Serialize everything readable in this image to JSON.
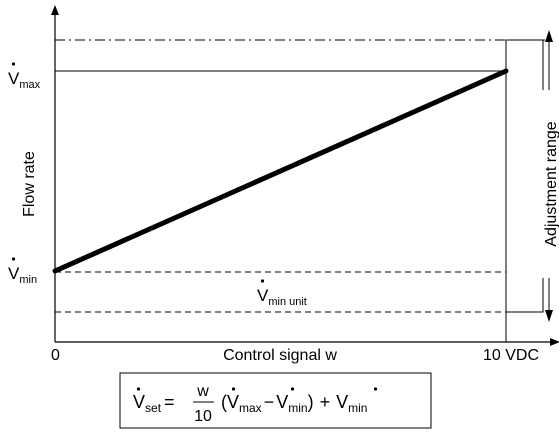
{
  "chart_data": {
    "type": "line",
    "title": "",
    "xlabel": "Control signal w",
    "ylabel": "Flow rate",
    "x_ticks": [
      "0",
      "10 VDC"
    ],
    "xlim": [
      0,
      10
    ],
    "ylim_note": "",
    "series": [
      {
        "name": "",
        "x": [
          0,
          10
        ],
        "y": [
          "V̇min",
          "V̇max"
        ]
      }
    ],
    "y_levels": {
      "vmax": {
        "base": "V",
        "sub": "max"
      },
      "vmin": {
        "base": "V",
        "sub": "min"
      },
      "vmin_unit": {
        "base": "V",
        "sub": "min unit"
      }
    },
    "adjustment_label": "Adjustment range"
  },
  "formula": {
    "lhs_base": "V",
    "lhs_sub": "set",
    "eq": "=",
    "frac_num": "w",
    "frac_den": "10",
    "open": "(",
    "t1_base": "V",
    "t1_sub": "max",
    "minus": "−",
    "t2_base": "V",
    "t2_sub": "min",
    "close": ")",
    "plus": "+",
    "t3_base": "V",
    "t3_sub": "min"
  }
}
